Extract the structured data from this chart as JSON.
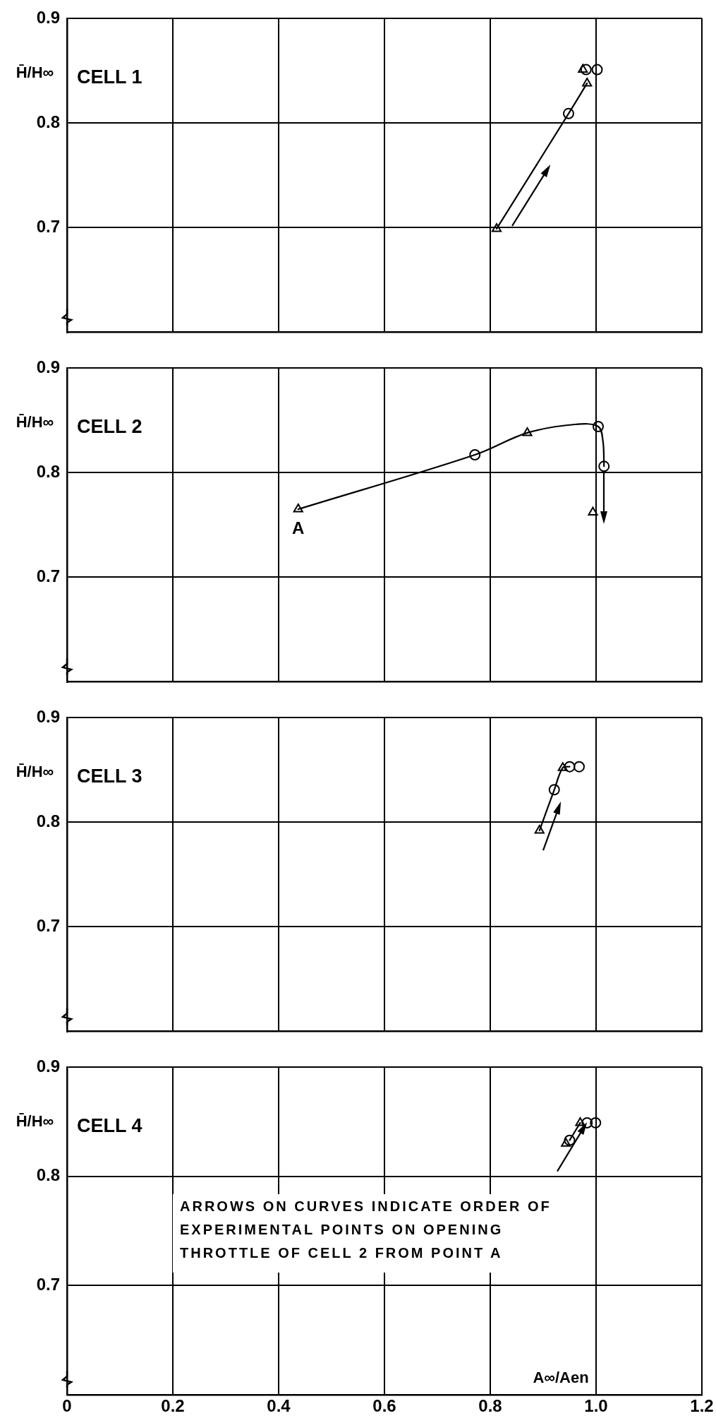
{
  "chart_data": [
    {
      "type": "scatter",
      "ylabel": "H̄/H∞",
      "annotations": [
        "CELL 1"
      ],
      "xlim": [
        0,
        1.2
      ],
      "xticks": [
        0,
        0.2,
        0.4,
        0.6,
        0.8,
        1,
        1.2
      ],
      "ylim": [
        0.6,
        0.9
      ],
      "yticks": [
        0.7,
        0.8,
        0.9
      ],
      "grid": true,
      "tick_labels": "y",
      "series": [
        {
          "type": "line",
          "marker": "none",
          "color": "#000000",
          "x": [
            0.812,
            0.948,
            0.983
          ],
          "values": [
            0.699,
            0.809,
            0.838
          ]
        },
        {
          "type": "scatter",
          "marker": "circle",
          "color": "#000000",
          "x": [
            0.948,
            0.981,
            1.002
          ],
          "values": [
            0.809,
            0.851,
            0.851
          ]
        },
        {
          "type": "scatter",
          "marker": "triangle",
          "color": "#000000",
          "x": [
            0.812,
            0.983,
            0.975
          ],
          "values": [
            0.699,
            0.838,
            0.851
          ]
        }
      ]
    },
    {
      "type": "scatter",
      "ylabel": "H̄/H∞",
      "annotations": [
        "CELL 2",
        {
          "text": "A",
          "x": 0.437,
          "y": 0.765
        }
      ],
      "xlim": [
        0,
        1.2
      ],
      "xticks": [
        0,
        0.2,
        0.4,
        0.6,
        0.8,
        1,
        1.2
      ],
      "ylim": [
        0.6,
        0.9
      ],
      "yticks": [
        0.7,
        0.8,
        0.9
      ],
      "grid": true,
      "tick_labels": "y",
      "series": [
        {
          "type": "line",
          "marker": "none",
          "color": "#000000",
          "x": [
            0.437,
            0.771,
            0.87,
            0.96,
            1.004,
            1.013,
            1.015
          ],
          "values": [
            0.765,
            0.817,
            0.838,
            0.846,
            0.844,
            0.83,
            0.806
          ]
        },
        {
          "type": "scatter",
          "marker": "circle",
          "color": "#000000",
          "x": [
            0.771,
            1.004,
            1.015
          ],
          "values": [
            0.817,
            0.844,
            0.806
          ]
        },
        {
          "type": "scatter",
          "marker": "triangle",
          "color": "#000000",
          "x": [
            0.437,
            0.87,
            0.994
          ],
          "values": [
            0.765,
            0.838,
            0.762
          ]
        }
      ]
    },
    {
      "type": "scatter",
      "ylabel": "H̄/H∞",
      "annotations": [
        "CELL 3"
      ],
      "xlim": [
        0,
        1.2
      ],
      "xticks": [
        0,
        0.2,
        0.4,
        0.6,
        0.8,
        1,
        1.2
      ],
      "ylim": [
        0.6,
        0.9
      ],
      "yticks": [
        0.7,
        0.8,
        0.9
      ],
      "grid": true,
      "tick_labels": "y",
      "series": [
        {
          "type": "line",
          "marker": "none",
          "color": "#000000",
          "x": [
            0.893,
            0.921,
            0.937,
            0.95
          ],
          "values": [
            0.792,
            0.831,
            0.852,
            0.853
          ]
        },
        {
          "type": "scatter",
          "marker": "circle",
          "color": "#000000",
          "x": [
            0.921,
            0.95,
            0.968
          ],
          "values": [
            0.831,
            0.853,
            0.853
          ]
        },
        {
          "type": "scatter",
          "marker": "triangle",
          "color": "#000000",
          "x": [
            0.893,
            0.937
          ],
          "values": [
            0.792,
            0.852
          ]
        }
      ]
    },
    {
      "type": "scatter",
      "ylabel": "H̄/H∞",
      "xlabel": "A∞/Aen",
      "annotations": [
        "CELL 4",
        "ARROWS ON CURVES INDICATE ORDER OF EXPERIMENTAL POINTS ON OPENING THROTTLE OF CELL 2 FROM POINT A"
      ],
      "xlim": [
        0,
        1.2
      ],
      "xticks": [
        0,
        {
          "value": 0.2,
          "label": "0.2"
        },
        {
          "value": 0.4,
          "label": "0.4"
        },
        {
          "value": 0.6,
          "label": "0.6"
        },
        {
          "value": 0.8,
          "label": "0.8"
        },
        {
          "value": 1,
          "label": "1.0"
        },
        {
          "value": 1.2,
          "label": "1.2"
        }
      ],
      "ylim": [
        0.6,
        0.9
      ],
      "yticks": [
        {
          "value": 0.7,
          "label": "0.7"
        },
        {
          "value": 0.8,
          "label": "0.8"
        },
        {
          "value": 0.9,
          "label": "0.9"
        }
      ],
      "grid": true,
      "series": [
        {
          "type": "line",
          "marker": "none",
          "color": "#000000",
          "x": [
            0.95,
            0.97
          ],
          "values": [
            0.833,
            0.849
          ]
        },
        {
          "type": "scatter",
          "marker": "circle",
          "color": "#000000",
          "x": [
            0.95,
            0.983,
            0.999
          ],
          "values": [
            0.833,
            0.849,
            0.849
          ]
        },
        {
          "type": "scatter",
          "marker": "triangle",
          "color": "#000000",
          "x": [
            0.943,
            0.97
          ],
          "values": [
            0.83,
            0.849
          ]
        }
      ]
    }
  ]
}
